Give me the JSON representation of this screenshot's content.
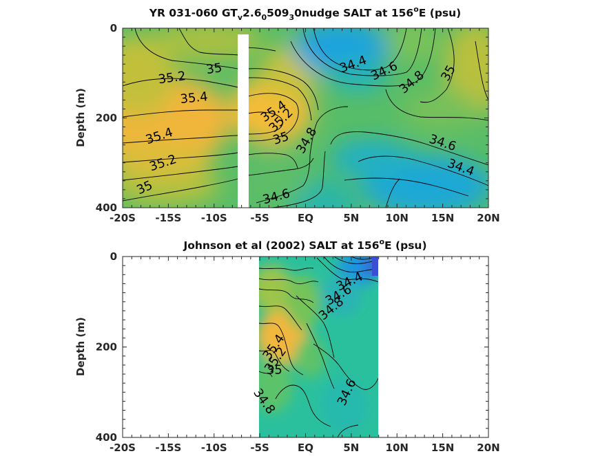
{
  "chart_data": [
    {
      "type": "contour",
      "title_parts": {
        "pre": "YR 031-060 GT",
        "s1": "v",
        "m1": "2.6",
        "s2": "0",
        "m2": "509",
        "s3": "3",
        "m3": "0nudge SALT at 156",
        "sup": "o",
        "post": "E (psu)"
      },
      "ylabel": "Depth (m)",
      "x_ticks": [
        "-20S",
        "-15S",
        "-10S",
        "-5S",
        "EQ",
        "5N",
        "10N",
        "15N",
        "20N"
      ],
      "y_ticks": [
        "0",
        "200",
        "400"
      ],
      "xlim": [
        -20,
        20
      ],
      "ylim": [
        0,
        400
      ],
      "colorscale_range_psu": [
        34.0,
        35.6
      ],
      "missing_band_lat": [
        -7.4,
        -6.4
      ],
      "contour_labels": [
        {
          "text": "35",
          "lat": -10.0,
          "depth": 90,
          "angle": -8
        },
        {
          "text": "35.2",
          "lat": -14.6,
          "depth": 110,
          "angle": -8
        },
        {
          "text": "35.4",
          "lat": -12.2,
          "depth": 155,
          "angle": -6
        },
        {
          "text": "35.4",
          "lat": -16.0,
          "depth": 240,
          "angle": -18
        },
        {
          "text": "35.2",
          "lat": -15.6,
          "depth": 300,
          "angle": -18
        },
        {
          "text": "35",
          "lat": -17.6,
          "depth": 355,
          "angle": -24
        },
        {
          "text": "35.4",
          "lat": -3.5,
          "depth": 185,
          "angle": -34
        },
        {
          "text": "35.2",
          "lat": -2.7,
          "depth": 205,
          "angle": -45
        },
        {
          "text": "35",
          "lat": -2.7,
          "depth": 245,
          "angle": -18
        },
        {
          "text": "34.8",
          "lat": 0.1,
          "depth": 250,
          "angle": -60
        },
        {
          "text": "34.6",
          "lat": -3.2,
          "depth": 375,
          "angle": -15
        },
        {
          "text": "34.4",
          "lat": 5.2,
          "depth": 80,
          "angle": -20
        },
        {
          "text": "34.6",
          "lat": 8.6,
          "depth": 95,
          "angle": -25
        },
        {
          "text": "34.8",
          "lat": 11.6,
          "depth": 120,
          "angle": -40
        },
        {
          "text": "35",
          "lat": 15.6,
          "depth": 100,
          "angle": -60
        },
        {
          "text": "34.6",
          "lat": 15.0,
          "depth": 255,
          "angle": 18
        },
        {
          "text": "34.4",
          "lat": 17.0,
          "depth": 310,
          "angle": 20
        }
      ]
    },
    {
      "type": "contour",
      "title_parts": {
        "pre": "Johnson et al (2002) SALT at 156",
        "sup": "o",
        "post": "E (psu)"
      },
      "ylabel": "Depth (m)",
      "x_ticks": [
        "-20S",
        "-15S",
        "-10S",
        "-5S",
        "EQ",
        "5N",
        "10N",
        "15N",
        "20N"
      ],
      "y_ticks": [
        "0",
        "200",
        "400"
      ],
      "xlim": [
        -20,
        20
      ],
      "ylim": [
        0,
        400
      ],
      "colorscale_range_psu": [
        34.0,
        35.6
      ],
      "data_lat_range": [
        -5,
        8
      ],
      "contour_labels": [
        {
          "text": "34.4",
          "lat": 4.8,
          "depth": 55,
          "angle": -25
        },
        {
          "text": "34.6",
          "lat": 3.6,
          "depth": 85,
          "angle": -30
        },
        {
          "text": "34.8",
          "lat": 2.8,
          "depth": 115,
          "angle": -40
        },
        {
          "text": "35.4",
          "lat": -3.5,
          "depth": 200,
          "angle": -55
        },
        {
          "text": "35.2",
          "lat": -3.3,
          "depth": 228,
          "angle": -55
        },
        {
          "text": "35",
          "lat": -3.4,
          "depth": 250,
          "angle": 0
        },
        {
          "text": "34.8",
          "lat": -4.5,
          "depth": 320,
          "angle": 55
        },
        {
          "text": "34.6",
          "lat": 4.5,
          "depth": 300,
          "angle": -65
        }
      ]
    }
  ]
}
